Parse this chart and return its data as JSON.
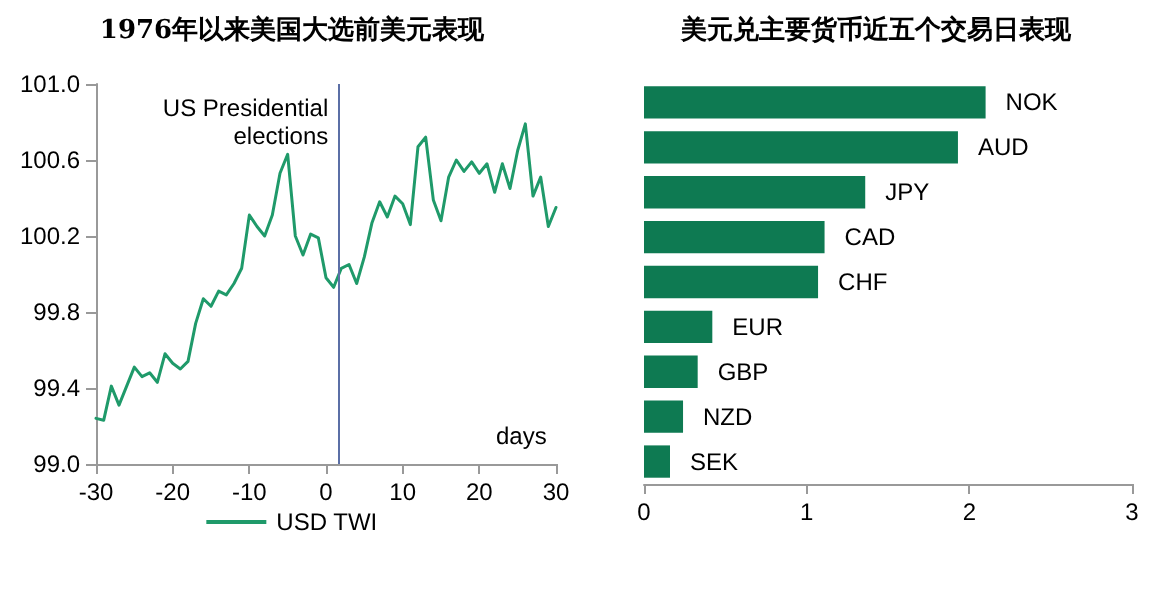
{
  "chart_data": [
    {
      "type": "line",
      "title": "1976年以来美国大选前美元表现",
      "xlabel": "days",
      "legend": "bottom",
      "grid": false,
      "marker": "none",
      "line_style": "solid",
      "xlim": [
        -30,
        30
      ],
      "xticks": [
        -30,
        -20,
        -10,
        0,
        10,
        20,
        30
      ],
      "ylim": [
        99,
        101
      ],
      "yticks": [
        {
          "value": 99,
          "label": "99.0"
        },
        99.4,
        99.8,
        100.2,
        100.6,
        {
          "value": 101,
          "label": "101.0"
        }
      ],
      "ref_lines": [
        {
          "axis": "x",
          "value": 1.6,
          "label": "US Presidential elections",
          "color": "#5b6fa6"
        }
      ],
      "series": [
        {
          "name": "USD TWI",
          "color": "#1f9a6a",
          "x": [
            -30,
            -29,
            -28,
            -27,
            -26,
            -25,
            -24,
            -23,
            -22,
            -21,
            -20,
            -19,
            -18,
            -17,
            -16,
            -15,
            -14,
            -13,
            -12,
            -11,
            -10,
            -9,
            -8,
            -7,
            -6,
            -5,
            -4,
            -3,
            -2,
            -1,
            0,
            1,
            2,
            3,
            4,
            5,
            6,
            7,
            8,
            9,
            10,
            11,
            12,
            13,
            14,
            15,
            16,
            17,
            18,
            19,
            20,
            21,
            22,
            23,
            24,
            25,
            26,
            27,
            28,
            29,
            30
          ],
          "values": [
            99.24,
            99.23,
            99.41,
            99.31,
            99.41,
            99.51,
            99.46,
            99.48,
            99.43,
            99.58,
            99.53,
            99.5,
            99.54,
            99.74,
            99.87,
            99.83,
            99.91,
            99.89,
            99.95,
            100.03,
            100.31,
            100.25,
            100.2,
            100.31,
            100.53,
            100.63,
            100.2,
            100.1,
            100.21,
            100.19,
            99.98,
            99.93,
            100.03,
            100.05,
            99.95,
            100.09,
            100.27,
            100.38,
            100.3,
            100.41,
            100.37,
            100.26,
            100.67,
            100.72,
            100.39,
            100.28,
            100.51,
            100.6,
            100.54,
            100.59,
            100.53,
            100.58,
            100.43,
            100.58,
            100.45,
            100.65,
            100.79,
            100.41,
            100.51,
            100.25,
            100.35
          ]
        }
      ]
    },
    {
      "type": "bar",
      "orientation": "horizontal",
      "title": "美元兑主要货币近五个交易日表现",
      "grid": false,
      "legend": false,
      "categories": [
        "NOK",
        "AUD",
        "JPY",
        "CAD",
        "CHF",
        "EUR",
        "GBP",
        "NZD",
        "SEK"
      ],
      "values": [
        2.1,
        1.93,
        1.36,
        1.11,
        1.07,
        0.42,
        0.33,
        0.24,
        0.16
      ],
      "color": "#0e7a52",
      "xlim": [
        0,
        3
      ],
      "xticks": [
        0,
        1,
        2,
        3
      ]
    }
  ]
}
